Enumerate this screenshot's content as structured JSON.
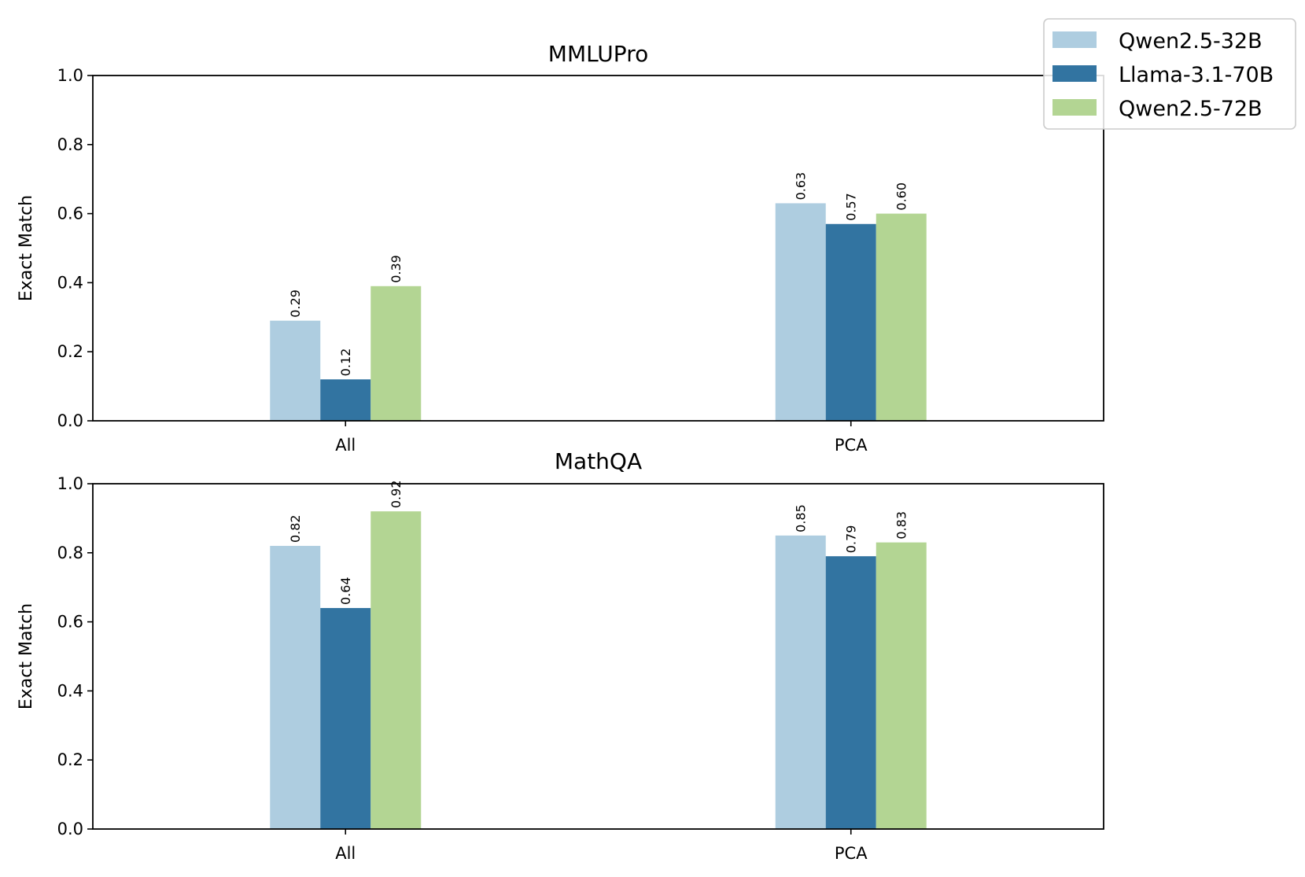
{
  "legend": [
    {
      "name": "Qwen2.5-32B",
      "color": "#aecde0"
    },
    {
      "name": "Llama-3.1-70B",
      "color": "#3274a1"
    },
    {
      "name": "Qwen2.5-72B",
      "color": "#b3d593"
    }
  ],
  "chart_data": [
    {
      "type": "bar",
      "title": "MMLUPro",
      "xlabel": "",
      "ylabel": "Exact Match",
      "ylim": [
        0,
        1.0
      ],
      "yticks": [
        "0.0",
        "0.2",
        "0.4",
        "0.6",
        "0.8",
        "1.0"
      ],
      "categories": [
        "All",
        "PCA"
      ],
      "series": [
        {
          "name": "Qwen2.5-32B",
          "values": [
            0.29,
            0.63
          ],
          "labels": [
            "0.29",
            "0.63"
          ]
        },
        {
          "name": "Llama-3.1-70B",
          "values": [
            0.12,
            0.57
          ],
          "labels": [
            "0.12",
            "0.57"
          ]
        },
        {
          "name": "Qwen2.5-72B",
          "values": [
            0.39,
            0.6
          ],
          "labels": [
            "0.39",
            "0.60"
          ]
        }
      ]
    },
    {
      "type": "bar",
      "title": "MathQA",
      "xlabel": "",
      "ylabel": "Exact Match",
      "ylim": [
        0,
        1.0
      ],
      "yticks": [
        "0.0",
        "0.2",
        "0.4",
        "0.6",
        "0.8",
        "1.0"
      ],
      "categories": [
        "All",
        "PCA"
      ],
      "series": [
        {
          "name": "Qwen2.5-32B",
          "values": [
            0.82,
            0.85
          ],
          "labels": [
            "0.82",
            "0.85"
          ]
        },
        {
          "name": "Llama-3.1-70B",
          "values": [
            0.64,
            0.79
          ],
          "labels": [
            "0.64",
            "0.79"
          ]
        },
        {
          "name": "Qwen2.5-72B",
          "values": [
            0.92,
            0.83
          ],
          "labels": [
            "0.92",
            "0.83"
          ]
        }
      ]
    }
  ]
}
